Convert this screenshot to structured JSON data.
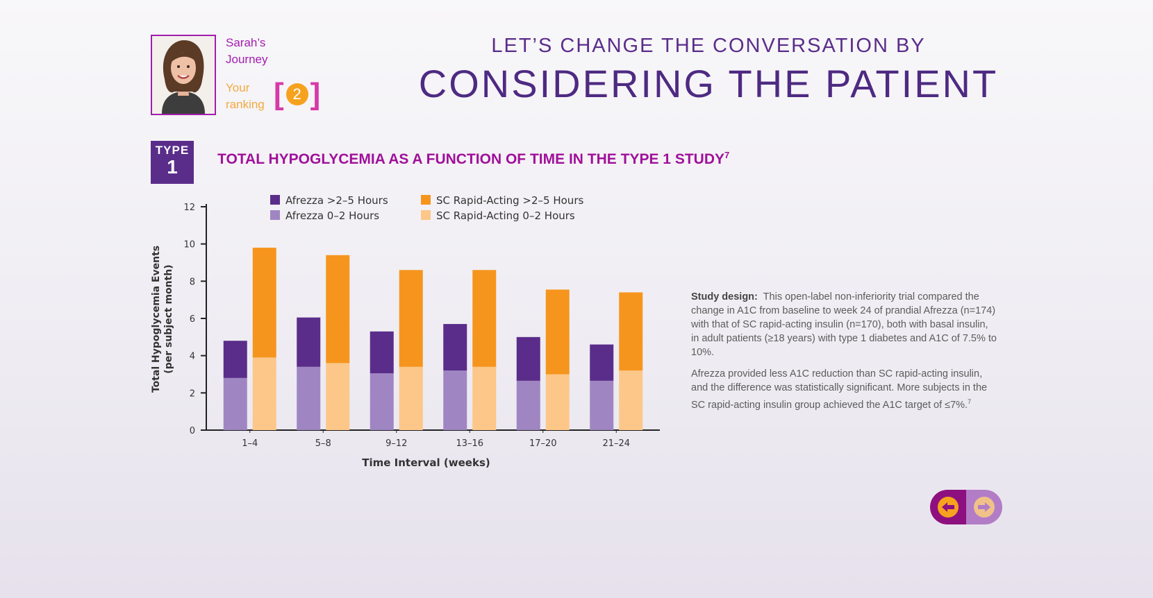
{
  "profile": {
    "journey_label": "Sarah’s Journey",
    "ranking_label": "Your ranking",
    "rank_value": "2",
    "portrait_icon": "woman-portrait"
  },
  "header": {
    "subhead": "LET’S CHANGE THE CONVERSATION BY",
    "headline": "CONSIDERING THE PATIENT"
  },
  "badge": {
    "line1": "TYPE",
    "line2": "1"
  },
  "chart_title": {
    "text": "TOTAL HYPOGLYCEMIA AS A FUNCTION OF TIME IN THE TYPE 1 STUDY",
    "ref": "7"
  },
  "chart_data": {
    "type": "bar",
    "stacked": true,
    "groups": [
      "Afrezza",
      "SC Rapid-Acting"
    ],
    "categories": [
      "1-4",
      "5-8",
      "9-12",
      "13-16",
      "17-20",
      "21-24"
    ],
    "series": [
      {
        "name": "Afrezza 0-2 Hours",
        "group": "Afrezza",
        "color": "#9f86c2",
        "values": [
          2.8,
          3.4,
          3.05,
          3.2,
          2.65,
          2.65
        ]
      },
      {
        "name": "Afrezza >2-5 Hours",
        "group": "Afrezza",
        "color": "#5a2d8a",
        "values": [
          2.0,
          2.65,
          2.25,
          2.5,
          2.35,
          1.95
        ]
      },
      {
        "name": "SC Rapid-Acting 0-2 Hours",
        "group": "SC Rapid-Acting",
        "color": "#fcc788",
        "values": [
          3.9,
          3.6,
          3.4,
          3.4,
          3.0,
          3.2
        ]
      },
      {
        "name": "SC Rapid-Acting >2-5 Hours",
        "group": "SC Rapid-Acting",
        "color": "#f6951d",
        "values": [
          5.9,
          5.8,
          5.2,
          5.2,
          4.55,
          4.2
        ]
      }
    ],
    "legend": [
      "Afrezza >2–5 Hours",
      "SC Rapid-Acting >2–5 Hours",
      "Afrezza 0–2 Hours",
      "SC Rapid-Acting 0–2 Hours"
    ],
    "category_labels": [
      "1–4",
      "5–8",
      "9–12",
      "13–16",
      "17–20",
      "21–24"
    ],
    "xlabel": "Time Interval (weeks)",
    "ylabel_line1": "Total Hypoglycemia Events",
    "ylabel_line2": "(per subject month)",
    "ylim": [
      0,
      12
    ],
    "yticks": [
      "0",
      "2",
      "4",
      "6",
      "8",
      "10",
      "12"
    ]
  },
  "study": {
    "design_label": "Study design:",
    "design_text": "This open-label non-inferiority trial compared the change in A1C from baseline to week 24 of prandial Afrezza (n=174) with that of SC rapid-acting insulin (n=170), both with basal insulin, in adult patients (≥18 years) with type 1 diabetes and A1C of 7.5% to 10%.",
    "result_text": "Afrezza provided less A1C reduction than SC rapid-acting insulin, and the difference was statistically significant. More subjects in the SC rapid-acting insulin group achieved the A1C target of ≤7%.",
    "result_ref": "7"
  },
  "nav": {
    "prev_icon": "arrow-left-icon",
    "next_icon": "arrow-right-icon"
  }
}
